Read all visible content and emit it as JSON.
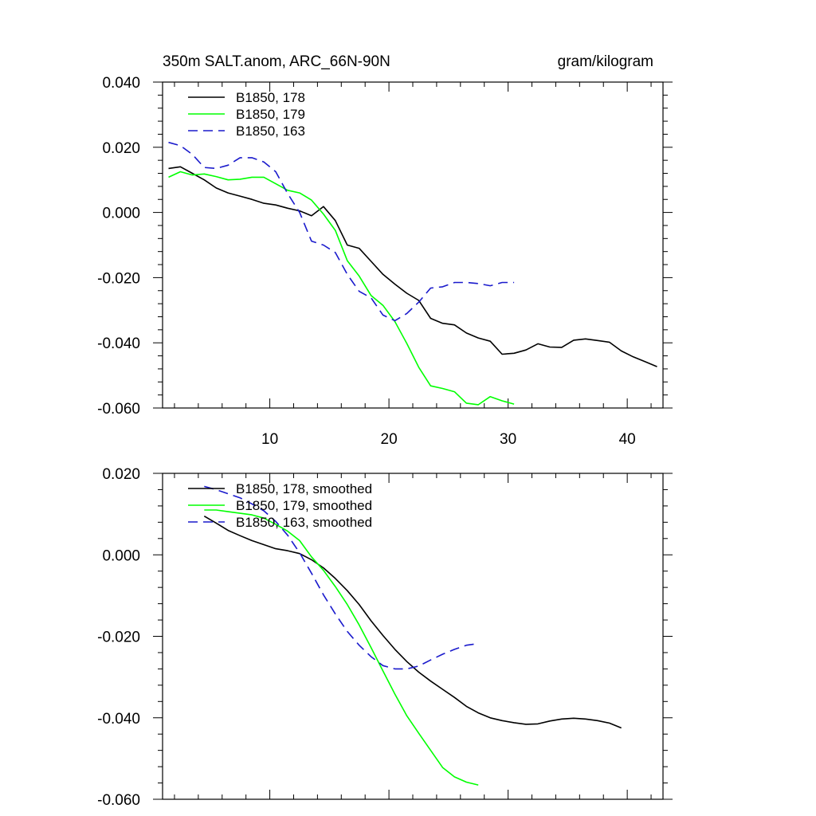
{
  "header": {
    "left_title": "350m SALT.anom, ARC_66N-90N",
    "right_title": "gram/kilogram"
  },
  "chart_data": [
    {
      "type": "line",
      "xlim": [
        1,
        43
      ],
      "ylim": [
        -0.06,
        0.04
      ],
      "x_ticks": [
        10,
        20,
        30,
        40
      ],
      "x_tick_labels": [
        "10",
        "20",
        "30",
        "40"
      ],
      "y_ticks": [
        0.04,
        0.02,
        0.0,
        -0.02,
        -0.04,
        -0.06
      ],
      "y_tick_labels": [
        "0.040",
        "0.020",
        "0.000",
        "-0.020",
        "-0.040",
        "-0.060"
      ],
      "legend_position": "top-left",
      "series": [
        {
          "name": "B1850, 178",
          "color": "#000000",
          "dash": "solid",
          "x": [
            1.5,
            2.5,
            3.5,
            4.5,
            5.5,
            6.5,
            7.5,
            8.5,
            9.5,
            10.5,
            11.5,
            12.5,
            13.5,
            14.5,
            15.5,
            16.5,
            17.5,
            18.5,
            19.5,
            20.5,
            21.5,
            22.5,
            23.5,
            24.5,
            25.5,
            26.5,
            27.5,
            28.5,
            29.5,
            30.5,
            31.5,
            32.5,
            33.5,
            34.5,
            35.5,
            36.5,
            37.5,
            38.5,
            39.5,
            40.5,
            41.5,
            42.5
          ],
          "values": [
            0.0135,
            0.014,
            0.012,
            0.01,
            0.0075,
            0.006,
            0.005,
            0.004,
            0.0028,
            0.0023,
            0.0013,
            0.0005,
            -0.001,
            0.0018,
            -0.0025,
            -0.01,
            -0.011,
            -0.015,
            -0.019,
            -0.022,
            -0.0248,
            -0.027,
            -0.0325,
            -0.034,
            -0.0345,
            -0.037,
            -0.0385,
            -0.0395,
            -0.0435,
            -0.0432,
            -0.0422,
            -0.0403,
            -0.0413,
            -0.0414,
            -0.0392,
            -0.0388,
            -0.0393,
            -0.0398,
            -0.0425,
            -0.0443,
            -0.0458,
            -0.0473
          ]
        },
        {
          "name": "B1850, 179",
          "color": "#00ff00",
          "dash": "solid",
          "x": [
            1.5,
            2.5,
            3.5,
            4.5,
            5.5,
            6.5,
            7.5,
            8.5,
            9.5,
            10.5,
            11.5,
            12.5,
            13.5,
            14.5,
            15.5,
            16.5,
            17.5,
            18.5,
            19.5,
            20.5,
            21.5,
            22.5,
            23.5,
            24.5,
            25.5,
            26.5,
            27.5,
            28.5,
            29.5,
            30.5
          ],
          "values": [
            0.0108,
            0.0125,
            0.0115,
            0.0118,
            0.011,
            0.01,
            0.0102,
            0.0108,
            0.0108,
            0.0088,
            0.0068,
            0.006,
            0.0038,
            -0.0005,
            -0.0055,
            -0.0148,
            -0.0195,
            -0.0255,
            -0.0285,
            -0.0335,
            -0.0402,
            -0.0475,
            -0.0532,
            -0.054,
            -0.055,
            -0.0585,
            -0.059,
            -0.0565,
            -0.0578,
            -0.0588
          ]
        },
        {
          "name": "B1850, 163",
          "color": "#1a1acc",
          "dash": "dashed",
          "x": [
            1.5,
            2.5,
            3.5,
            4.5,
            5.5,
            6.5,
            7.5,
            8.5,
            9.5,
            10.5,
            11.5,
            12.5,
            13.5,
            14.5,
            15.5,
            16.5,
            17.5,
            18.5,
            19.5,
            20.5,
            21.5,
            22.5,
            23.5,
            24.5,
            25.5,
            26.5,
            27.5,
            28.5,
            29.5,
            30.5
          ],
          "values": [
            0.0215,
            0.0205,
            0.0178,
            0.0138,
            0.0135,
            0.0145,
            0.0168,
            0.0168,
            0.0155,
            0.0125,
            0.0058,
            0.0,
            -0.0088,
            -0.01,
            -0.0123,
            -0.019,
            -0.0242,
            -0.0262,
            -0.0315,
            -0.0332,
            -0.031,
            -0.0275,
            -0.0232,
            -0.0228,
            -0.0215,
            -0.0215,
            -0.0218,
            -0.0225,
            -0.0215,
            -0.0215
          ]
        }
      ]
    },
    {
      "type": "line",
      "xlim": [
        1,
        43
      ],
      "ylim": [
        -0.06,
        0.02
      ],
      "x_ticks": [
        10,
        20,
        30,
        40
      ],
      "x_tick_labels": [],
      "y_ticks": [
        0.02,
        0.0,
        -0.02,
        -0.04,
        -0.06
      ],
      "y_tick_labels": [
        "0.020",
        "0.000",
        "-0.020",
        "-0.040",
        "-0.060"
      ],
      "legend_position": "top-left",
      "series": [
        {
          "name": "B1850, 178, smoothed",
          "color": "#000000",
          "dash": "solid",
          "x": [
            4.5,
            5.5,
            6.5,
            7.5,
            8.5,
            9.5,
            10.5,
            11.5,
            12.5,
            13.5,
            14.5,
            15.5,
            16.5,
            17.5,
            18.5,
            19.5,
            20.5,
            21.5,
            22.5,
            23.5,
            24.5,
            25.5,
            26.5,
            27.5,
            28.5,
            29.5,
            30.5,
            31.5,
            32.5,
            33.5,
            34.5,
            35.5,
            36.5,
            37.5,
            38.5,
            39.5
          ],
          "values": [
            0.0095,
            0.0078,
            0.006,
            0.0047,
            0.0035,
            0.0025,
            0.0015,
            0.001,
            0.0003,
            -0.0012,
            -0.0032,
            -0.0058,
            -0.0088,
            -0.0122,
            -0.0162,
            -0.0198,
            -0.0232,
            -0.0262,
            -0.0288,
            -0.031,
            -0.033,
            -0.035,
            -0.0372,
            -0.0388,
            -0.04,
            -0.0407,
            -0.0412,
            -0.0416,
            -0.0415,
            -0.0408,
            -0.0403,
            -0.0401,
            -0.0403,
            -0.0407,
            -0.0413,
            -0.0425
          ]
        },
        {
          "name": "B1850, 179, smoothed",
          "color": "#00ff00",
          "dash": "solid",
          "x": [
            4.5,
            5.5,
            6.5,
            7.5,
            8.5,
            9.5,
            10.5,
            11.5,
            12.5,
            13.5,
            14.5,
            15.5,
            16.5,
            17.5,
            18.5,
            19.5,
            20.5,
            21.5,
            22.5,
            23.5,
            24.5,
            25.5,
            26.5,
            27.5
          ],
          "values": [
            0.011,
            0.011,
            0.0106,
            0.0102,
            0.0098,
            0.009,
            0.0075,
            0.0058,
            0.0035,
            -0.0005,
            -0.0038,
            -0.0078,
            -0.0122,
            -0.0172,
            -0.0228,
            -0.0285,
            -0.0342,
            -0.0395,
            -0.0438,
            -0.048,
            -0.0522,
            -0.0545,
            -0.0558,
            -0.0565
          ]
        },
        {
          "name": "B1850, 163, smoothed",
          "color": "#1a1acc",
          "dash": "dashed",
          "x": [
            4.5,
            5.5,
            6.5,
            7.5,
            8.5,
            9.5,
            10.5,
            11.5,
            12.5,
            13.5,
            14.5,
            15.5,
            16.5,
            17.5,
            18.5,
            19.5,
            20.5,
            21.5,
            22.5,
            23.5,
            24.5,
            25.5,
            26.5,
            27.5
          ],
          "values": [
            0.0168,
            0.016,
            0.015,
            0.014,
            0.0125,
            0.0108,
            0.0082,
            0.0048,
            0.0005,
            -0.0045,
            -0.0098,
            -0.0145,
            -0.0188,
            -0.0222,
            -0.025,
            -0.0272,
            -0.028,
            -0.028,
            -0.0273,
            -0.0258,
            -0.0244,
            -0.0232,
            -0.0222,
            -0.0218
          ]
        }
      ]
    }
  ]
}
